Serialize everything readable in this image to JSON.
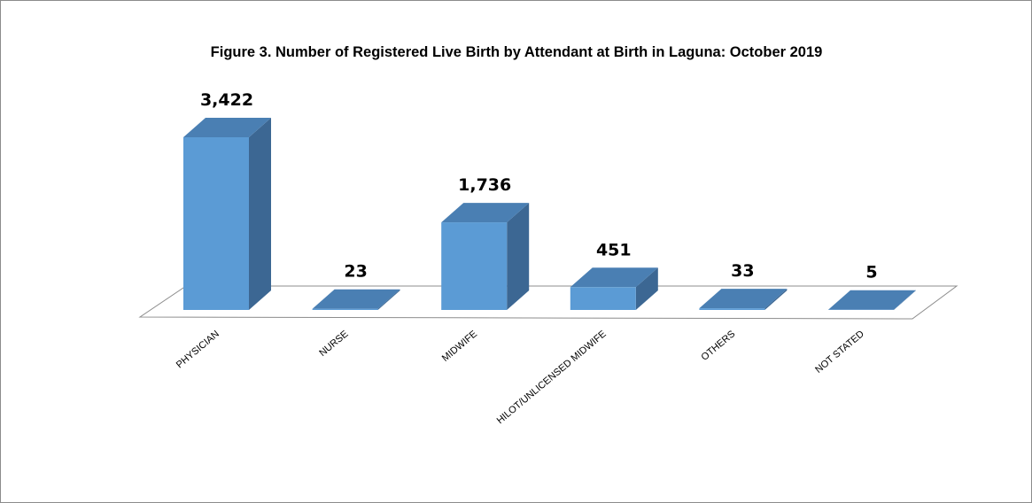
{
  "chart_data": {
    "type": "bar3d",
    "title": "Figure 3. Number of Registered Live Birth by Attendant at Birth in Laguna: October 2019",
    "categories": [
      "PHYSICIAN",
      "NURSE",
      "MIDWIFE",
      "HILOT/UNLICENSED MIDWIFE",
      "OTHERS",
      "NOT STATED"
    ],
    "values": [
      3422,
      23,
      1736,
      451,
      33,
      5
    ],
    "value_labels": [
      "3,422",
      "23",
      "1,736",
      "451",
      "33",
      "5"
    ],
    "color": "#5b9bd5"
  }
}
